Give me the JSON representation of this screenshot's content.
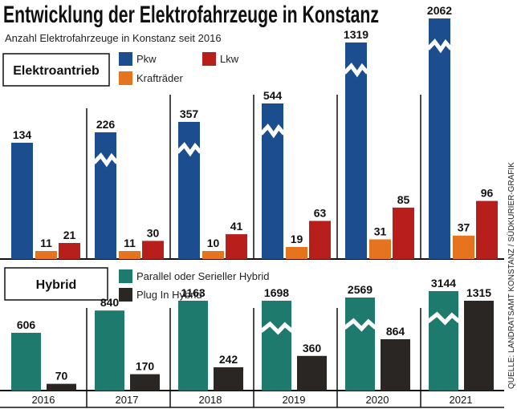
{
  "title": "Entwicklung der Elektrofahrzeuge in Konstanz",
  "subtitle": "Anzahl Elektrofahrzeuge in Konstanz seit 2016",
  "source": "QUELLE: LANDRATSAMT KONSTANZ / SÜDKURIER-GRAFIK",
  "colors": {
    "pkw": "#1c4e8f",
    "lkw": "#b81f1c",
    "kraftraeder": "#e6731e",
    "hybrid_parallel": "#1f7a6e",
    "plugin": "#2a2623"
  },
  "chart_data": [
    {
      "type": "bar",
      "section_label": "Elektroantrieb",
      "categories": [
        "2016",
        "2017",
        "2018",
        "2019",
        "2020",
        "2021"
      ],
      "axis_break": "Pkw bars from 2017 are drawn with a broken (zigzag) axis",
      "series": [
        {
          "name": "Pkw",
          "values": [
            134,
            226,
            357,
            544,
            1319,
            2062
          ]
        },
        {
          "name": "Krafträder",
          "values": [
            11,
            11,
            10,
            19,
            31,
            37
          ]
        },
        {
          "name": "Lkw",
          "values": [
            21,
            30,
            41,
            63,
            85,
            96
          ]
        }
      ],
      "legend": [
        "Pkw",
        "Lkw",
        "Krafträder"
      ]
    },
    {
      "type": "bar",
      "section_label": "Hybrid",
      "categories": [
        "2016",
        "2017",
        "2018",
        "2019",
        "2020",
        "2021"
      ],
      "axis_break": "Parallel/Serieller Hybrid bars from 2019 are drawn with a broken (zigzag) axis",
      "series": [
        {
          "name": "Parallel oder Serieller Hybrid",
          "values": [
            606,
            840,
            1163,
            1698,
            2569,
            3144
          ]
        },
        {
          "name": "Plug In Hybrid",
          "values": [
            70,
            170,
            242,
            360,
            864,
            1315
          ]
        }
      ],
      "legend": [
        "Parallel oder Serieller Hybrid",
        "Plug In Hybrid"
      ]
    }
  ]
}
